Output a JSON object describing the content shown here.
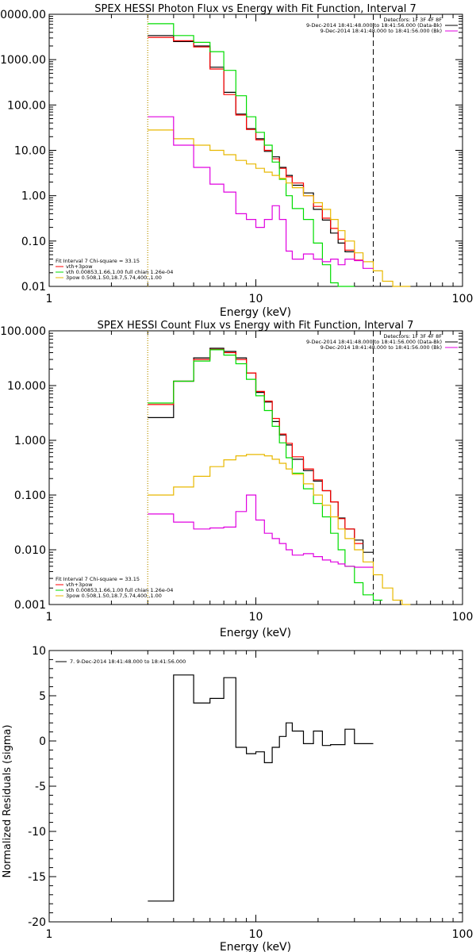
{
  "chart_data": [
    {
      "type": "line",
      "title": "SPEX HESSI Photon Flux vs Energy with Fit Function, Interval 7",
      "xlabel": "Energy (keV)",
      "ylabel": "",
      "xscale": "log",
      "yscale": "log",
      "xlim": [
        1,
        100
      ],
      "ylim": [
        0.01,
        10000
      ],
      "xticks": [
        {
          "v": 1,
          "label": "1"
        },
        {
          "v": 10,
          "label": "10"
        },
        {
          "v": 100,
          "label": "100"
        }
      ],
      "yticks": [
        {
          "v": 0.01,
          "label": "0.01"
        },
        {
          "v": 0.1,
          "label": "0.10"
        },
        {
          "v": 1,
          "label": "1.00"
        },
        {
          "v": 10,
          "label": "10.00"
        },
        {
          "v": 100,
          "label": "100.00"
        },
        {
          "v": 1000,
          "label": "1000.00"
        },
        {
          "v": 10000,
          "label": "10000.00"
        }
      ],
      "vlines": [
        {
          "x": 3,
          "style": "dotted",
          "color": "#000000"
        },
        {
          "x": 3,
          "style": "dotted",
          "color": "#e8b800"
        },
        {
          "x": 37,
          "style": "dashed",
          "color": "#000000"
        }
      ],
      "legend_top": [
        {
          "text": "Detectors: 1F 3F 4F 8F",
          "color": ""
        },
        {
          "text": "9-Dec-2014 18:41:48.000 to 18:41:56.000 (Data-Bk)",
          "color": "#000000"
        },
        {
          "text": "9-Dec-2014 18:41:48.000 to 18:41:56.000 (Bk)",
          "color": "#e000e0"
        }
      ],
      "legend_bottom": [
        {
          "text": "Fit Interval  7   Chi-square = 33.15",
          "color": ""
        },
        {
          "text": "vth+3pow",
          "color": "#ff0000"
        },
        {
          "text": "vth 0.00853,1.66,1.00  full chian 1.26e-04",
          "color": "#00dd00"
        },
        {
          "text": "3pow 0.508,1.50,18.7,5.74,400.,1.00",
          "color": "#e8b800"
        }
      ],
      "edges": [
        3,
        4,
        5,
        6,
        7,
        8,
        9,
        10,
        11,
        12,
        13,
        14,
        15,
        17,
        19,
        21,
        23,
        25,
        27,
        30,
        33,
        37,
        41,
        46,
        51,
        56
      ],
      "series": [
        {
          "name": "9-Dec-2014 18:41:48.000 to 18:41:56.000 (Data-Bk)",
          "color": "#000000",
          "values": [
            3400,
            2500,
            2000,
            680,
            190,
            63,
            30,
            18,
            9.5,
            7.2,
            4.2,
            2.8,
            1.7,
            1.15,
            0.5,
            0.29,
            0.15,
            0.09,
            0.058
          ]
        },
        {
          "name": "vth+3pow",
          "color": "#ff0000",
          "values": [
            3100,
            2600,
            1900,
            620,
            170,
            60,
            29,
            17,
            10,
            6.5,
            4.0,
            2.6,
            1.9,
            1.0,
            0.58,
            0.32,
            0.19,
            0.11,
            0.063,
            0.038
          ]
        },
        {
          "name": "vth",
          "color": "#00dd00",
          "values": [
            6200,
            3400,
            2400,
            1500,
            580,
            160,
            55,
            25,
            13,
            5.5,
            2.3,
            1.0,
            0.52,
            0.3,
            0.09,
            0.03,
            0.012,
            0.0085,
            0.0085
          ]
        },
        {
          "name": "3pow",
          "color": "#e8b800",
          "values": [
            28,
            18,
            13,
            10,
            8,
            6,
            5,
            4,
            3.3,
            2.8,
            2.4,
            1.9,
            1.5,
            1.0,
            0.7,
            0.5,
            0.3,
            0.17,
            0.1,
            0.055,
            0.035,
            0.022,
            0.013,
            0.009,
            0.009
          ]
        },
        {
          "name": "9-Dec-2014 18:41:48.000 to 18:41:56.000 (Bk)",
          "color": "#e000e0",
          "values": [
            55,
            13,
            4.2,
            1.8,
            1.2,
            0.4,
            0.3,
            0.2,
            0.3,
            0.6,
            0.3,
            0.06,
            0.04,
            0.052,
            0.04,
            0.035,
            0.04,
            0.03,
            0.04,
            0.037,
            0.025
          ]
        }
      ]
    },
    {
      "type": "line",
      "title": "SPEX HESSI Count Flux vs Energy with Fit Function, Interval 7",
      "xlabel": "Energy (keV)",
      "ylabel": "",
      "xscale": "log",
      "yscale": "log",
      "xlim": [
        1,
        100
      ],
      "ylim": [
        0.001,
        100
      ],
      "xticks": [
        {
          "v": 1,
          "label": "1"
        },
        {
          "v": 10,
          "label": "10"
        },
        {
          "v": 100,
          "label": "100"
        }
      ],
      "yticks": [
        {
          "v": 0.001,
          "label": "0.001"
        },
        {
          "v": 0.01,
          "label": "0.010"
        },
        {
          "v": 0.1,
          "label": "0.100"
        },
        {
          "v": 1,
          "label": "1.000"
        },
        {
          "v": 10,
          "label": "10.000"
        },
        {
          "v": 100,
          "label": "100.000"
        }
      ],
      "vlines": [
        {
          "x": 3,
          "style": "dotted",
          "color": "#000000"
        },
        {
          "x": 3,
          "style": "dotted",
          "color": "#e8b800"
        },
        {
          "x": 37,
          "style": "dashed",
          "color": "#000000"
        }
      ],
      "legend_top": [
        {
          "text": "Detectors: 1F 3F 4F 8F",
          "color": ""
        },
        {
          "text": "9-Dec-2014 18:41:48.000 to 18:41:56.000 (Data-Bk)",
          "color": "#000000"
        },
        {
          "text": "9-Dec-2014 18:41:48.000 to 18:41:56.000 (Bk)",
          "color": "#e000e0"
        }
      ],
      "legend_bottom": [
        {
          "text": "Fit Interval  7   Chi-square = 33.15",
          "color": ""
        },
        {
          "text": "vth+3pow",
          "color": "#ff0000"
        },
        {
          "text": "vth 0.00853,1.66,1.00  full chian 1.26e-04",
          "color": "#00dd00"
        },
        {
          "text": "3pow 0.508,1.50,18.7,5.74,400.,1.00",
          "color": "#e8b800"
        }
      ],
      "edges": [
        3,
        4,
        5,
        6,
        7,
        8,
        9,
        10,
        11,
        12,
        13,
        14,
        15,
        17,
        19,
        21,
        23,
        25,
        27,
        30,
        33,
        37,
        41,
        46,
        51,
        56
      ],
      "series": [
        {
          "name": "9-Dec-2014 18:41:48.000 to 18:41:56.000 (Data-Bk)",
          "color": "#000000",
          "values": [
            2.6,
            12,
            32,
            48,
            42,
            32,
            17,
            7.5,
            5,
            2.2,
            1.25,
            0.82,
            0.45,
            0.28,
            0.18,
            0.12,
            0.075,
            0.038,
            0.024,
            0.015,
            0.009
          ]
        },
        {
          "name": "vth+3pow",
          "color": "#ff0000",
          "values": [
            4.5,
            12,
            30,
            46,
            40,
            30,
            17,
            7.8,
            5.2,
            2.5,
            1.3,
            0.88,
            0.5,
            0.3,
            0.19,
            0.12,
            0.075,
            0.037,
            0.024,
            0.013
          ]
        },
        {
          "name": "vth",
          "color": "#00dd00",
          "values": [
            4.8,
            12,
            28,
            45,
            36,
            25,
            13,
            6.5,
            3.5,
            1.8,
            0.9,
            0.48,
            0.25,
            0.13,
            0.07,
            0.04,
            0.02,
            0.01,
            0.005,
            0.0025,
            0.0015,
            0.0012
          ]
        },
        {
          "name": "3pow",
          "color": "#e8b800",
          "values": [
            0.1,
            0.14,
            0.22,
            0.33,
            0.44,
            0.52,
            0.55,
            0.55,
            0.52,
            0.45,
            0.38,
            0.3,
            0.24,
            0.16,
            0.1,
            0.065,
            0.04,
            0.024,
            0.016,
            0.01,
            0.006,
            0.0035,
            0.002,
            0.0012,
            0.001
          ]
        },
        {
          "name": "9-Dec-2014 18:41:48.000 to 18:41:56.000 (Bk)",
          "color": "#e000e0",
          "values": [
            0.045,
            0.032,
            0.024,
            0.025,
            0.026,
            0.05,
            0.1,
            0.035,
            0.02,
            0.016,
            0.013,
            0.01,
            0.008,
            0.0085,
            0.0075,
            0.0065,
            0.006,
            0.0055,
            0.005,
            0.0048,
            0.0048
          ]
        }
      ]
    },
    {
      "type": "line",
      "title": "",
      "xlabel": "Energy (keV)",
      "ylabel": "Normalized Residuals (sigma)",
      "xscale": "log",
      "yscale": "linear",
      "xlim": [
        1,
        100
      ],
      "ylim": [
        -20,
        10
      ],
      "xticks": [
        {
          "v": 1,
          "label": "1"
        },
        {
          "v": 10,
          "label": "10"
        },
        {
          "v": 100,
          "label": "100"
        }
      ],
      "yticks": [
        {
          "v": -20,
          "label": "-20"
        },
        {
          "v": -15,
          "label": "-15"
        },
        {
          "v": -10,
          "label": "-10"
        },
        {
          "v": -5,
          "label": "-5"
        },
        {
          "v": 0,
          "label": "0"
        },
        {
          "v": 5,
          "label": "5"
        },
        {
          "v": 10,
          "label": "10"
        }
      ],
      "vlines": [],
      "legend_top": [
        {
          "text": "7. 9-Dec-2014 18:41:48.000 to 18:41:56.000",
          "color": "#000000"
        }
      ],
      "legend_bottom": [],
      "edges": [
        3,
        4,
        5,
        6,
        7,
        8,
        9,
        10,
        11,
        12,
        13,
        14,
        15,
        17,
        19,
        21,
        23,
        25,
        27,
        30,
        33,
        37
      ],
      "series": [
        {
          "name": "7. 9-Dec-2014 18:41:48.000 to 18:41:56.000",
          "color": "#000000",
          "values": [
            -17.7,
            7.3,
            4.2,
            4.7,
            7.0,
            -0.7,
            -1.4,
            -1.2,
            -2.4,
            -0.7,
            0.5,
            2.0,
            1.1,
            -0.3,
            1.1,
            -0.5,
            -0.4,
            -0.4,
            1.3,
            -0.3,
            -0.3
          ]
        }
      ]
    }
  ]
}
